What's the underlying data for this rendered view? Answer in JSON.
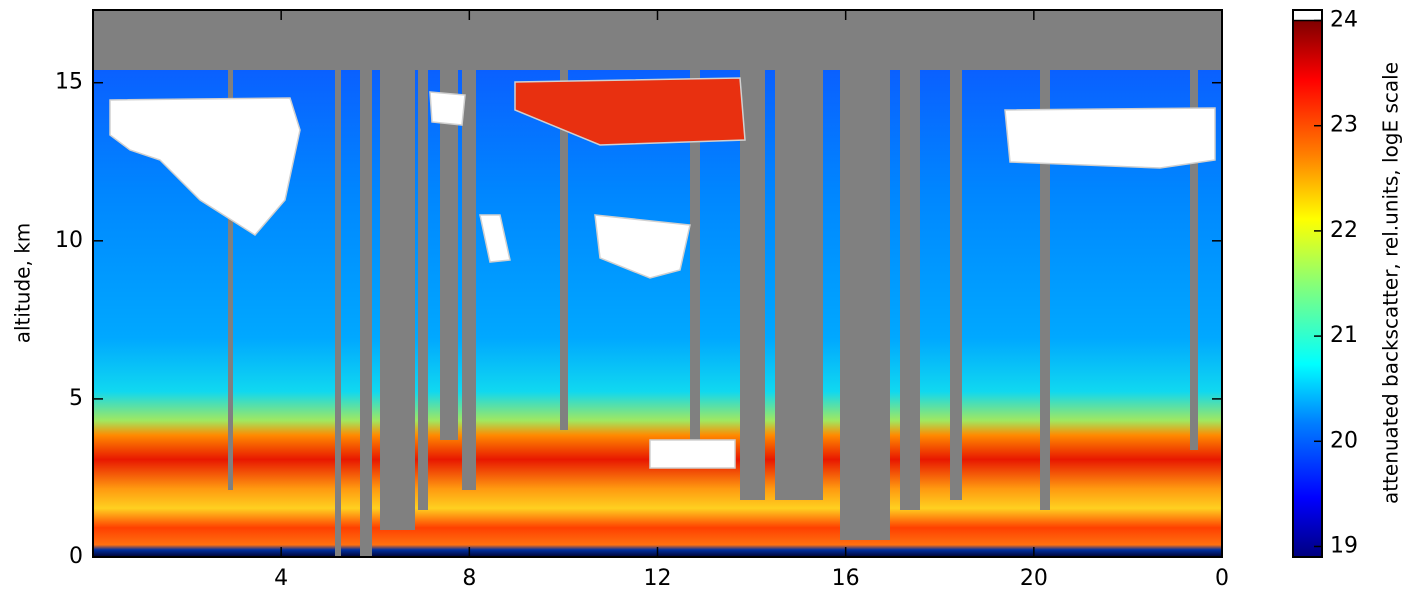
{
  "chart_data": {
    "type": "heatmap",
    "ylabel": "altitude, km",
    "xlim": [
      0,
      24
    ],
    "xticks": [
      4,
      8,
      12,
      16,
      20,
      {
        "value": 24,
        "label": "0"
      }
    ],
    "ylim": [
      0,
      17.3
    ],
    "yticks": [
      0,
      5,
      10,
      15
    ],
    "colorbar": {
      "label": "attenuated backscatter, rel.units, logE scale",
      "lim": [
        18.9,
        24.1
      ],
      "ticks": [
        19,
        20,
        21,
        22,
        23,
        24
      ]
    }
  }
}
